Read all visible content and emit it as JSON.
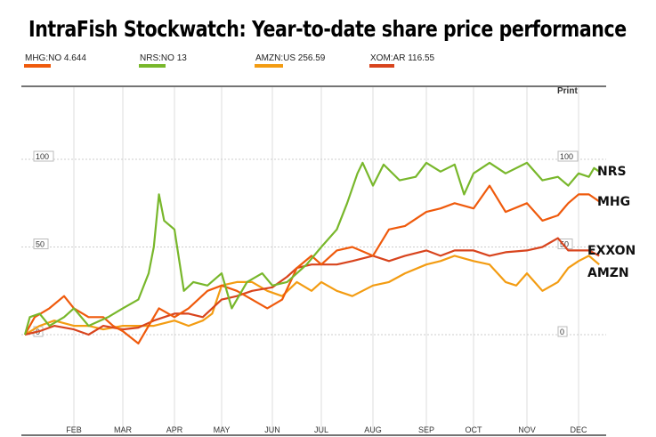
{
  "chart_data": {
    "type": "line",
    "title": "IntraFish Stockwatch: Year-to-date share price performance",
    "xlabel": "",
    "ylabel": "",
    "ylim": [
      -35,
      115
    ],
    "x_ticks": [
      "FEB",
      "MAR",
      "APR",
      "MAY",
      "JUN",
      "JUL",
      "AUG",
      "SEP",
      "OCT",
      "NOV",
      "DEC"
    ],
    "y_ticks": [
      {
        "value": 100,
        "label": "100"
      },
      {
        "value": 50,
        "label": "50"
      },
      {
        "value": 0,
        "label": "0"
      }
    ],
    "legend": [
      {
        "ticker": "MHG:NO",
        "price": "4.644",
        "color": "#ef5a0c"
      },
      {
        "ticker": "NRS:NO",
        "price": "13",
        "color": "#78b72b"
      },
      {
        "ticker": "AMZN:US",
        "price": "256.59",
        "color": "#f39c12"
      },
      {
        "ticker": "XOM:AR",
        "price": "116.55",
        "color": "#d8441d"
      }
    ],
    "print_label": "Print",
    "series": [
      {
        "name": "NRS",
        "label": "NRS",
        "color": "#78b72b",
        "x": [
          1,
          1.1,
          1.3,
          1.5,
          1.8,
          2,
          2.3,
          2.7,
          3,
          3.3,
          3.5,
          3.6,
          3.7,
          3.8,
          4,
          4.2,
          4.4,
          4.7,
          5,
          5.2,
          5.5,
          5.8,
          6,
          6.3,
          6.7,
          7,
          7.3,
          7.5,
          7.7,
          7.8,
          8,
          8.2,
          8.5,
          8.8,
          9,
          9.3,
          9.6,
          9.8,
          10,
          10.3,
          10.6,
          11,
          11.3,
          11.6,
          11.8,
          12,
          12.2,
          12.3,
          12.4
        ],
        "y": [
          0,
          10,
          12,
          5,
          10,
          15,
          5,
          10,
          15,
          20,
          35,
          50,
          80,
          65,
          60,
          25,
          30,
          28,
          35,
          15,
          30,
          35,
          28,
          30,
          40,
          50,
          60,
          75,
          92,
          98,
          85,
          97,
          88,
          90,
          98,
          93,
          97,
          80,
          92,
          98,
          92,
          98,
          88,
          90,
          85,
          92,
          90,
          95,
          93
        ]
      },
      {
        "name": "MHG",
        "label": "MHG",
        "color": "#ef5a0c",
        "x": [
          1,
          1.2,
          1.5,
          1.8,
          2,
          2.3,
          2.6,
          2.8,
          3,
          3.3,
          3.5,
          3.7,
          4,
          4.3,
          4.7,
          5,
          5.3,
          5.6,
          5.9,
          6.2,
          6.5,
          6.8,
          7,
          7.3,
          7.6,
          8,
          8.3,
          8.6,
          9,
          9.3,
          9.6,
          10,
          10.3,
          10.6,
          11,
          11.3,
          11.6,
          11.8,
          12,
          12.2,
          12.4
        ],
        "y": [
          0,
          10,
          15,
          22,
          15,
          10,
          10,
          5,
          2,
          -5,
          5,
          15,
          10,
          15,
          25,
          28,
          25,
          20,
          15,
          20,
          38,
          45,
          40,
          48,
          50,
          45,
          60,
          62,
          70,
          72,
          75,
          72,
          85,
          70,
          75,
          65,
          68,
          75,
          80,
          80,
          76
        ]
      },
      {
        "name": "XOM",
        "label": "EXXON",
        "color": "#d8441d",
        "x": [
          1,
          1.3,
          1.6,
          2,
          2.3,
          2.6,
          3,
          3.3,
          3.6,
          4,
          4.3,
          4.6,
          5,
          5.3,
          5.6,
          6,
          6.3,
          6.5,
          6.8,
          7,
          7.3,
          7.6,
          8,
          8.3,
          8.6,
          9,
          9.3,
          9.6,
          10,
          10.3,
          10.6,
          11,
          11.3,
          11.6,
          11.8,
          12,
          12.2,
          12.4
        ],
        "y": [
          0,
          2,
          5,
          3,
          0,
          5,
          3,
          4,
          8,
          12,
          12,
          10,
          20,
          22,
          25,
          27,
          33,
          38,
          40,
          40,
          40,
          42,
          45,
          42,
          45,
          48,
          45,
          48,
          48,
          45,
          47,
          48,
          50,
          55,
          48,
          48,
          48,
          45
        ]
      },
      {
        "name": "AMZN",
        "label": "AMZN",
        "color": "#f39c12",
        "x": [
          1,
          1.3,
          1.6,
          2,
          2.3,
          2.6,
          3,
          3.3,
          3.6,
          4,
          4.3,
          4.6,
          4.8,
          5,
          5.3,
          5.6,
          5.9,
          6.2,
          6.5,
          6.8,
          7,
          7.3,
          7.6,
          8,
          8.3,
          8.6,
          9,
          9.3,
          9.6,
          10,
          10.3,
          10.6,
          10.8,
          11,
          11.3,
          11.6,
          11.8,
          12,
          12.2,
          12.4
        ],
        "y": [
          0,
          5,
          8,
          5,
          5,
          3,
          5,
          5,
          5,
          8,
          5,
          8,
          12,
          28,
          30,
          30,
          25,
          22,
          30,
          25,
          30,
          25,
          22,
          28,
          30,
          35,
          40,
          42,
          45,
          42,
          40,
          30,
          28,
          35,
          25,
          30,
          38,
          42,
          45,
          40
        ]
      }
    ]
  }
}
